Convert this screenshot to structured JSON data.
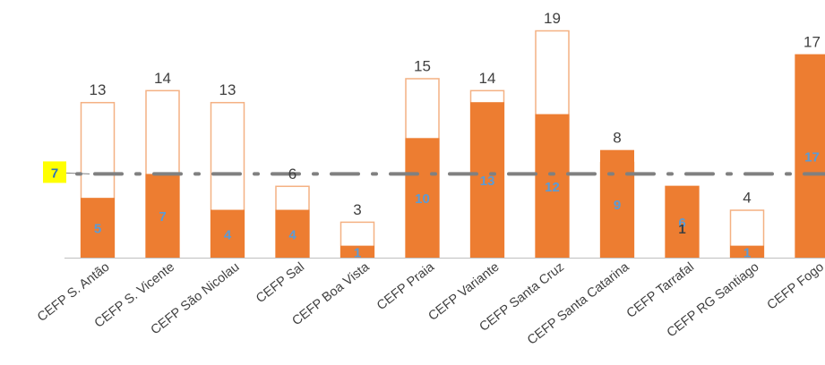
{
  "chart_data": {
    "type": "bar",
    "categories": [
      "CEFP S. Antão",
      "CEFP S. Vicente",
      "CEFP São Nicolau",
      "CEFP Sal",
      "CEFP Boa Vista",
      "CEFP Praia",
      "CEFP Variante",
      "CEFP Santa Cruz",
      "CEFP Santa Catarina",
      "CEFP Tarrafal",
      "CEFP RG Santiago",
      "CEFP Fogo"
    ],
    "series": [
      {
        "values": [
          13,
          14,
          13,
          6,
          3,
          15,
          14,
          19,
          8,
          6,
          4,
          17
        ],
        "color": "#ffffff",
        "stroke": "#f4b183"
      },
      {
        "values": [
          5,
          7,
          4,
          4,
          1,
          10,
          13,
          12,
          9,
          6,
          1,
          17
        ],
        "color": "#ed7d31"
      }
    ],
    "inner_labels": [
      "5",
      "7",
      "4",
      "4",
      "1",
      "10",
      "13",
      "12",
      "9",
      "6",
      "1",
      "17"
    ],
    "total_labels": [
      "13",
      "14",
      "13",
      "6",
      "3",
      "15",
      "14",
      "19",
      "8",
      "",
      "4",
      "17"
    ],
    "extra_labels": [
      {
        "index": 9,
        "text": "1"
      }
    ],
    "reference_line": {
      "value": 7,
      "label": "7",
      "style": "dotted",
      "color": "#808080",
      "badge_color": "#ffff00"
    },
    "ylim": [
      0,
      19
    ],
    "grid": false,
    "legend": "none",
    "xlabel": "",
    "ylabel": "",
    "title": ""
  }
}
